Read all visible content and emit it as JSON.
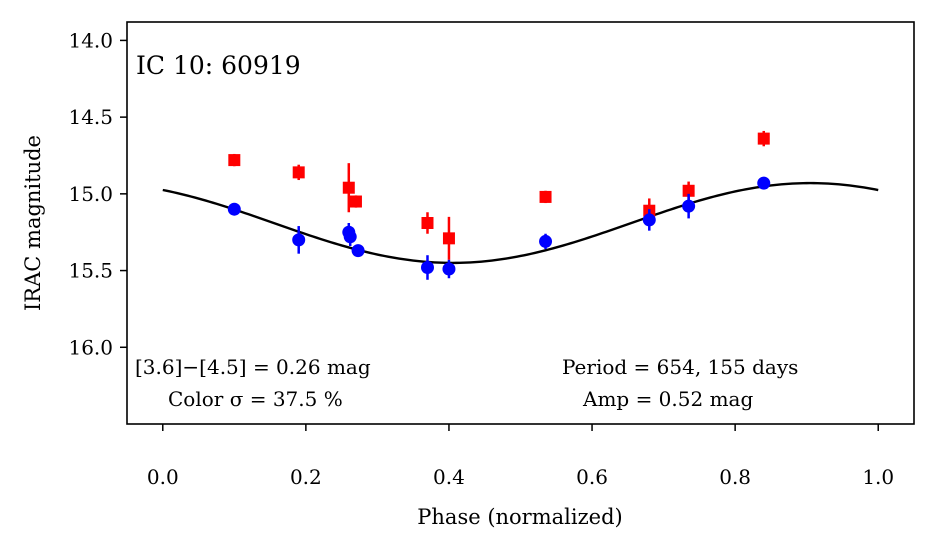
{
  "chart_data": {
    "type": "scatter",
    "title": "IC 10: 60919",
    "xlabel": "Phase (normalized)",
    "ylabel": "IRAC magnitude",
    "xlim": [
      -0.05,
      1.05
    ],
    "ylim": [
      16.5,
      13.88
    ],
    "y_inverted": true,
    "grid": false,
    "xticks": [
      0.0,
      0.2,
      0.4,
      0.6,
      0.8,
      1.0
    ],
    "xtick_labels": [
      "0.0",
      "0.2",
      "0.4",
      "0.6",
      "0.8",
      "1.0"
    ],
    "yticks": [
      14.0,
      14.5,
      15.0,
      15.5,
      16.0
    ],
    "ytick_labels": [
      "14.0",
      "14.5",
      "15.0",
      "15.5",
      "16.0"
    ],
    "series": [
      {
        "marker": "square",
        "color": "#ff0000",
        "points": [
          {
            "x": 0.1,
            "y": 14.78,
            "err": 0.04
          },
          {
            "x": 0.19,
            "y": 14.86,
            "err": 0.05
          },
          {
            "x": 0.26,
            "y": 14.96,
            "err": 0.16
          },
          {
            "x": 0.27,
            "y": 15.05,
            "err": 0.04
          },
          {
            "x": 0.37,
            "y": 15.19,
            "err": 0.07
          },
          {
            "x": 0.4,
            "y": 15.29,
            "err": 0.14
          },
          {
            "x": 0.535,
            "y": 15.02,
            "err": 0.04
          },
          {
            "x": 0.68,
            "y": 15.11,
            "err": 0.08
          },
          {
            "x": 0.735,
            "y": 14.98,
            "err": 0.06
          },
          {
            "x": 0.84,
            "y": 14.64,
            "err": 0.05
          }
        ]
      },
      {
        "marker": "circle",
        "color": "#0000ff",
        "points": [
          {
            "x": 0.1,
            "y": 15.1,
            "err": 0.03
          },
          {
            "x": 0.19,
            "y": 15.3,
            "err": 0.09
          },
          {
            "x": 0.26,
            "y": 15.25,
            "err": 0.06
          },
          {
            "x": 0.262,
            "y": 15.28,
            "err": 0.06
          },
          {
            "x": 0.273,
            "y": 15.37,
            "err": 0.04
          },
          {
            "x": 0.37,
            "y": 15.48,
            "err": 0.08
          },
          {
            "x": 0.4,
            "y": 15.49,
            "err": 0.06
          },
          {
            "x": 0.535,
            "y": 15.31,
            "err": 0.05
          },
          {
            "x": 0.68,
            "y": 15.17,
            "err": 0.07
          },
          {
            "x": 0.735,
            "y": 15.08,
            "err": 0.08
          },
          {
            "x": 0.84,
            "y": 14.93,
            "err": 0.04
          }
        ]
      }
    ],
    "fit": {
      "color": "#000000",
      "mean": 15.19,
      "amplitude": 0.26,
      "min_phase": 0.405
    },
    "annotations": {
      "color_line1": "[3.6]−[4.5] = 0.26 mag",
      "color_line2": "Color σ = 37.5 %",
      "period_line1": "Period = 654, 155 days",
      "period_line2": "Amp = 0.52 mag"
    }
  }
}
